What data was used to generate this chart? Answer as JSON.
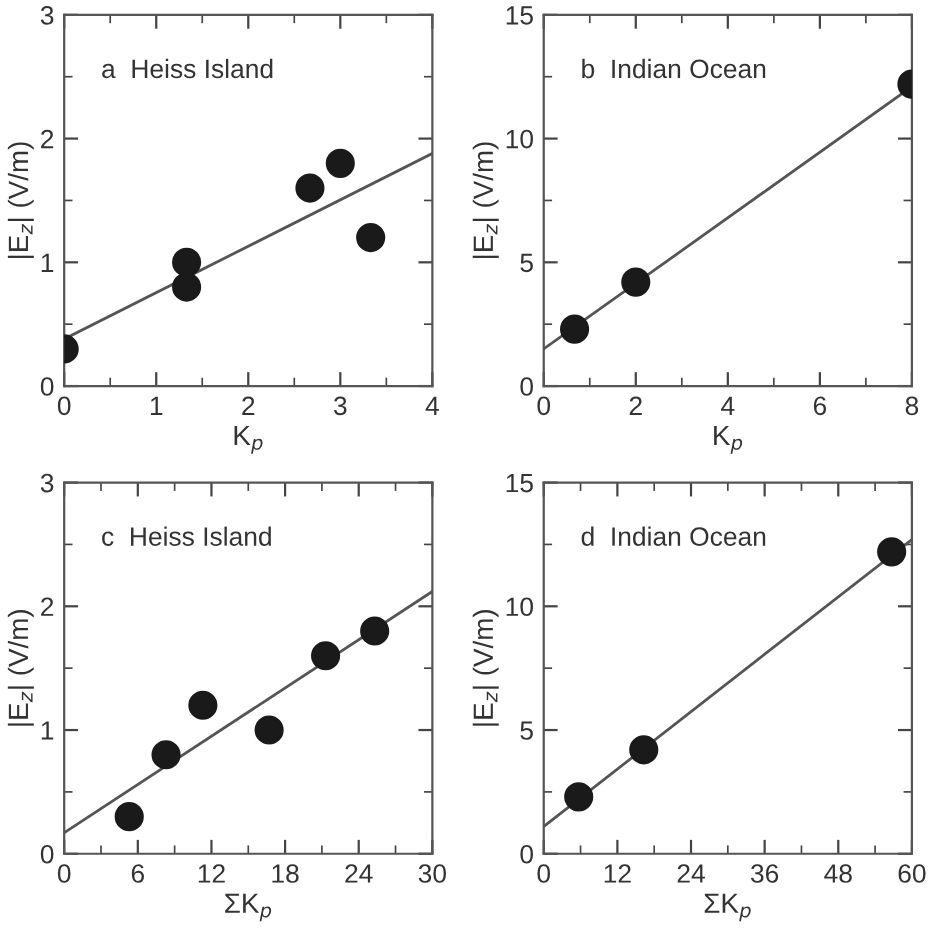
{
  "chart_data": [
    {
      "type": "scatter",
      "title": "a  Heiss Island",
      "xlabel": "K$_{p}$",
      "ylabel": "|E$_{z}$| (V/m)",
      "xlim": [
        0,
        4
      ],
      "xticks": [
        0,
        1,
        2,
        3,
        4
      ],
      "ylim": [
        0,
        3
      ],
      "yticks": [
        0,
        1,
        2,
        3
      ],
      "series": [
        {
          "color": "#1a1a1a",
          "marker": "circle",
          "x": [
            0,
            1.33,
            1.33,
            2.67,
            3,
            3.33
          ],
          "values": [
            0.3,
            1.0,
            0.8,
            1.6,
            1.8,
            1.2
          ]
        },
        {
          "type": "line",
          "color": "#555555",
          "x": [
            0,
            4
          ],
          "values": [
            0.38,
            1.88
          ]
        }
      ]
    },
    {
      "type": "scatter",
      "title": "b  Indian Ocean",
      "xlabel": "K$_{p}$",
      "ylabel": "|E$_{z}$| (V/m)",
      "xlim": [
        0,
        8
      ],
      "xticks": [
        0,
        2,
        4,
        6,
        8
      ],
      "ylim": [
        0,
        15
      ],
      "yticks": [
        0,
        5,
        10,
        15
      ],
      "series": [
        {
          "color": "#1a1a1a",
          "marker": "circle",
          "x": [
            0.67,
            2,
            8
          ],
          "values": [
            2.3,
            4.2,
            12.2
          ]
        },
        {
          "type": "line",
          "color": "#555555",
          "x": [
            0,
            8
          ],
          "values": [
            1.5,
            12.1
          ]
        }
      ]
    },
    {
      "type": "scatter",
      "title": "c  Heiss Island",
      "xlabel": "ΣK$_{p}$",
      "ylabel": "|E$_{z}$| (V/m)",
      "xlim": [
        0,
        30
      ],
      "xticks": [
        0,
        6,
        12,
        18,
        24,
        30
      ],
      "ylim": [
        0,
        3
      ],
      "yticks": [
        0,
        1,
        2,
        3
      ],
      "series": [
        {
          "color": "#1a1a1a",
          "marker": "circle",
          "x": [
            5.3,
            8.3,
            11.3,
            16.7,
            21.3,
            25.3
          ],
          "values": [
            0.3,
            0.8,
            1.2,
            1.0,
            1.6,
            1.8
          ]
        },
        {
          "type": "line",
          "color": "#555555",
          "x": [
            0,
            30
          ],
          "values": [
            0.17,
            2.12
          ]
        }
      ]
    },
    {
      "type": "scatter",
      "title": "d  Indian Ocean",
      "xlabel": "ΣK$_{p}$",
      "ylabel": "|E$_{z}$| (V/m)",
      "xlim": [
        0,
        60
      ],
      "xticks": [
        0,
        12,
        24,
        36,
        48,
        60
      ],
      "ylim": [
        0,
        15
      ],
      "yticks": [
        0,
        5,
        10,
        15
      ],
      "series": [
        {
          "color": "#1a1a1a",
          "marker": "circle",
          "x": [
            5.7,
            16.3,
            56.7
          ],
          "values": [
            2.3,
            4.2,
            12.2
          ]
        },
        {
          "type": "line",
          "color": "#555555",
          "x": [
            0,
            60
          ],
          "values": [
            1.1,
            12.7
          ]
        }
      ]
    }
  ]
}
